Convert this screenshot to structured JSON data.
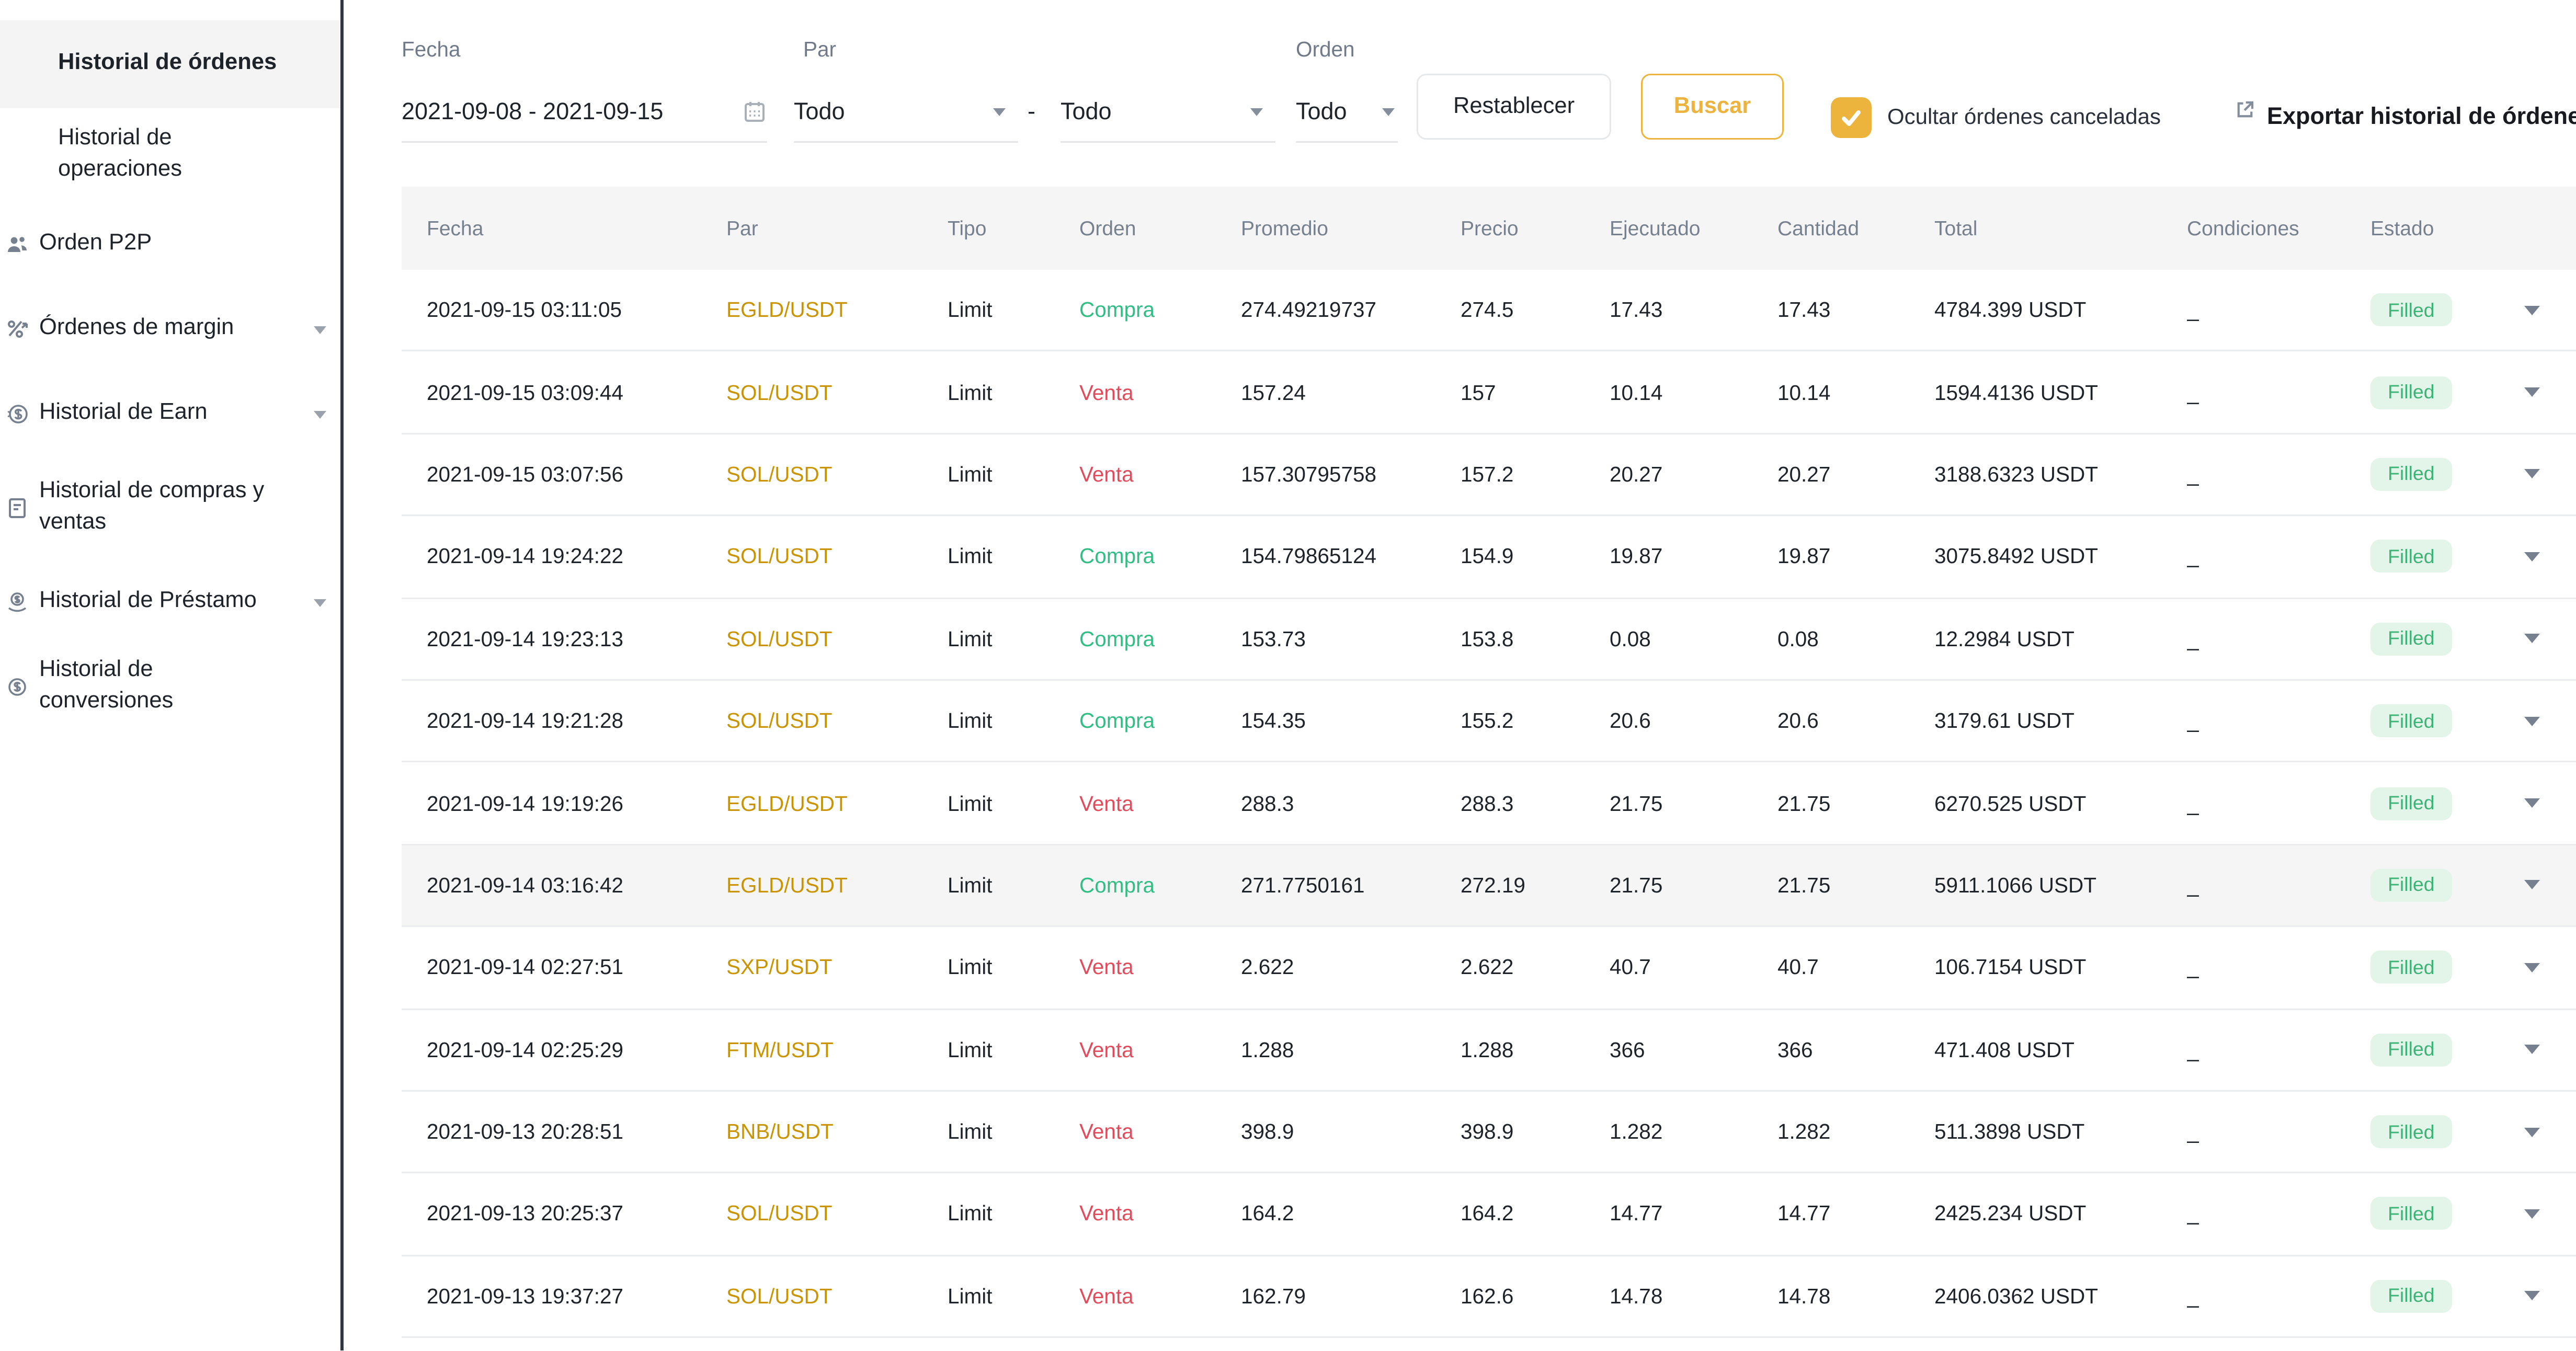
{
  "sidebar": {
    "items": [
      {
        "label": "Historial de órdenes",
        "selected": true,
        "indent": true
      },
      {
        "label": "Historial de operaciones",
        "indent": true,
        "h": 60
      },
      {
        "label": "Orden P2P",
        "icon": "users-icon"
      },
      {
        "label": "Órdenes de margin",
        "icon": "percent-arrow-icon",
        "caret": true
      },
      {
        "label": "Historial de Earn",
        "icon": "earn-coin-icon",
        "caret": true
      },
      {
        "label": "Historial de compras y ventas",
        "icon": "document-icon",
        "h": 66
      },
      {
        "label": "Historial de Préstamo",
        "icon": "loan-coin-icon",
        "caret": true
      },
      {
        "label": "Historial de conversiones",
        "icon": "convert-coin-icon"
      }
    ]
  },
  "filters": {
    "fecha_label": "Fecha",
    "fecha_value": "2021-09-08 - 2021-09-15",
    "par_label": "Par",
    "par_value_1": "Todo",
    "par_separator": "-",
    "par_value_2": "Todo",
    "orden_label": "Orden",
    "orden_value": "Todo",
    "reset_label": "Restablecer",
    "search_label": "Buscar",
    "hide_cancelled_checked": true,
    "hide_cancelled_label": "Ocultar órdenes canceladas",
    "export_label": "Exportar historial de órdenes"
  },
  "table": {
    "columns": [
      "Fecha",
      "Par",
      "Tipo",
      "Orden",
      "Promedio",
      "Precio",
      "Ejecutado",
      "Cantidad",
      "Total",
      "Condiciones",
      "Estado"
    ],
    "rows": [
      {
        "fecha": "2021-09-15 03:11:05",
        "par": "EGLD/USDT",
        "tipo": "Limit",
        "orden": "Compra",
        "side": "buy",
        "promedio": "274.49219737",
        "precio": "274.5",
        "ejecutado": "17.43",
        "cantidad": "17.43",
        "total": "4784.399 USDT",
        "condiciones": "_",
        "estado": "Filled",
        "highlighted": false
      },
      {
        "fecha": "2021-09-15 03:09:44",
        "par": "SOL/USDT",
        "tipo": "Limit",
        "orden": "Venta",
        "side": "sell",
        "promedio": "157.24",
        "precio": "157",
        "ejecutado": "10.14",
        "cantidad": "10.14",
        "total": "1594.4136 USDT",
        "condiciones": "_",
        "estado": "Filled",
        "highlighted": false
      },
      {
        "fecha": "2021-09-15 03:07:56",
        "par": "SOL/USDT",
        "tipo": "Limit",
        "orden": "Venta",
        "side": "sell",
        "promedio": "157.30795758",
        "precio": "157.2",
        "ejecutado": "20.27",
        "cantidad": "20.27",
        "total": "3188.6323 USDT",
        "condiciones": "_",
        "estado": "Filled",
        "highlighted": false
      },
      {
        "fecha": "2021-09-14 19:24:22",
        "par": "SOL/USDT",
        "tipo": "Limit",
        "orden": "Compra",
        "side": "buy",
        "promedio": "154.79865124",
        "precio": "154.9",
        "ejecutado": "19.87",
        "cantidad": "19.87",
        "total": "3075.8492 USDT",
        "condiciones": "_",
        "estado": "Filled",
        "highlighted": false
      },
      {
        "fecha": "2021-09-14 19:23:13",
        "par": "SOL/USDT",
        "tipo": "Limit",
        "orden": "Compra",
        "side": "buy",
        "promedio": "153.73",
        "precio": "153.8",
        "ejecutado": "0.08",
        "cantidad": "0.08",
        "total": "12.2984 USDT",
        "condiciones": "_",
        "estado": "Filled",
        "highlighted": false
      },
      {
        "fecha": "2021-09-14 19:21:28",
        "par": "SOL/USDT",
        "tipo": "Limit",
        "orden": "Compra",
        "side": "buy",
        "promedio": "154.35",
        "precio": "155.2",
        "ejecutado": "20.6",
        "cantidad": "20.6",
        "total": "3179.61 USDT",
        "condiciones": "_",
        "estado": "Filled",
        "highlighted": false
      },
      {
        "fecha": "2021-09-14 19:19:26",
        "par": "EGLD/USDT",
        "tipo": "Limit",
        "orden": "Venta",
        "side": "sell",
        "promedio": "288.3",
        "precio": "288.3",
        "ejecutado": "21.75",
        "cantidad": "21.75",
        "total": "6270.525 USDT",
        "condiciones": "_",
        "estado": "Filled",
        "highlighted": false
      },
      {
        "fecha": "2021-09-14 03:16:42",
        "par": "EGLD/USDT",
        "tipo": "Limit",
        "orden": "Compra",
        "side": "buy",
        "promedio": "271.7750161",
        "precio": "272.19",
        "ejecutado": "21.75",
        "cantidad": "21.75",
        "total": "5911.1066 USDT",
        "condiciones": "_",
        "estado": "Filled",
        "highlighted": true
      },
      {
        "fecha": "2021-09-14 02:27:51",
        "par": "SXP/USDT",
        "tipo": "Limit",
        "orden": "Venta",
        "side": "sell",
        "promedio": "2.622",
        "precio": "2.622",
        "ejecutado": "40.7",
        "cantidad": "40.7",
        "total": "106.7154 USDT",
        "condiciones": "_",
        "estado": "Filled",
        "highlighted": false
      },
      {
        "fecha": "2021-09-14 02:25:29",
        "par": "FTM/USDT",
        "tipo": "Limit",
        "orden": "Venta",
        "side": "sell",
        "promedio": "1.288",
        "precio": "1.288",
        "ejecutado": "366",
        "cantidad": "366",
        "total": "471.408 USDT",
        "condiciones": "_",
        "estado": "Filled",
        "highlighted": false
      },
      {
        "fecha": "2021-09-13 20:28:51",
        "par": "BNB/USDT",
        "tipo": "Limit",
        "orden": "Venta",
        "side": "sell",
        "promedio": "398.9",
        "precio": "398.9",
        "ejecutado": "1.282",
        "cantidad": "1.282",
        "total": "511.3898 USDT",
        "condiciones": "_",
        "estado": "Filled",
        "highlighted": false
      },
      {
        "fecha": "2021-09-13 20:25:37",
        "par": "SOL/USDT",
        "tipo": "Limit",
        "orden": "Venta",
        "side": "sell",
        "promedio": "164.2",
        "precio": "164.2",
        "ejecutado": "14.77",
        "cantidad": "14.77",
        "total": "2425.234 USDT",
        "condiciones": "_",
        "estado": "Filled",
        "highlighted": false
      },
      {
        "fecha": "2021-09-13 19:37:27",
        "par": "SOL/USDT",
        "tipo": "Limit",
        "orden": "Venta",
        "side": "sell",
        "promedio": "162.79",
        "precio": "162.6",
        "ejecutado": "14.78",
        "cantidad": "14.78",
        "total": "2406.0362 USDT",
        "condiciones": "_",
        "estado": "Filled",
        "highlighted": false
      }
    ]
  },
  "colors": {
    "accent_gold": "#ECB43D",
    "pair_link_gold": "#C99400",
    "buy_green": "#2FBE84",
    "sell_red": "#E24B5C",
    "filled_pill_bg": "#E3F4E9",
    "filled_pill_text": "#3EB377",
    "header_bg": "#F5F5F5",
    "row_divider": "#EAECEF",
    "text_primary": "#1E2329",
    "text_secondary": "#76808F"
  }
}
